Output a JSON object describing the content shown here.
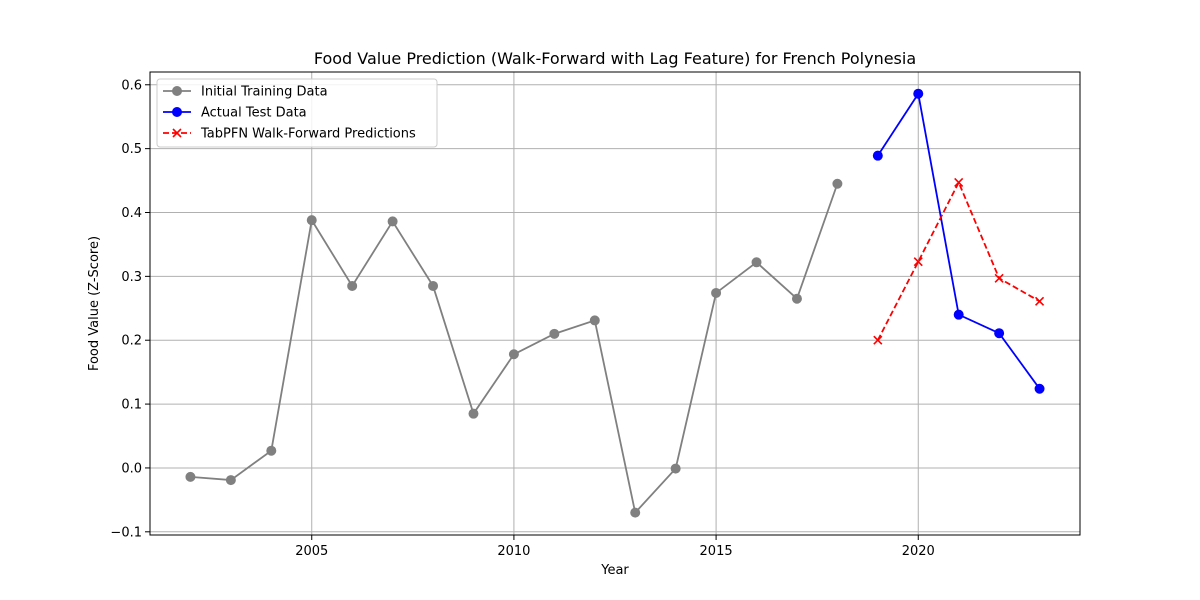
{
  "chart_data": {
    "type": "line",
    "title": "Food Value Prediction (Walk-Forward with Lag Feature) for French Polynesia",
    "xlabel": "Year",
    "ylabel": "Food Value (Z-Score)",
    "xlim": [
      2001,
      2024
    ],
    "ylim": [
      -0.105,
      0.62
    ],
    "xticks": [
      2005,
      2010,
      2015,
      2020
    ],
    "xtick_labels": [
      "2005",
      "2010",
      "2015",
      "2020"
    ],
    "yticks": [
      -0.1,
      0.0,
      0.1,
      0.2,
      0.3,
      0.4,
      0.5,
      0.6
    ],
    "ytick_labels": [
      "−0.1",
      "0.0",
      "0.1",
      "0.2",
      "0.3",
      "0.4",
      "0.5",
      "0.6"
    ],
    "grid": true,
    "legend_position": "top-left",
    "series": [
      {
        "name": "Initial Training Data",
        "color": "#808080",
        "linestyle": "solid",
        "marker": "circle",
        "x": [
          2002,
          2003,
          2004,
          2005,
          2006,
          2007,
          2008,
          2009,
          2010,
          2011,
          2012,
          2013,
          2014,
          2015,
          2016,
          2017,
          2018
        ],
        "y": [
          -0.014,
          -0.019,
          0.027,
          0.388,
          0.285,
          0.386,
          0.285,
          0.085,
          0.178,
          0.21,
          0.231,
          -0.07,
          -0.001,
          0.274,
          0.322,
          0.265,
          0.445
        ]
      },
      {
        "name": "Actual Test Data",
        "color": "#0000ff",
        "linestyle": "solid",
        "marker": "circle",
        "x": [
          2019,
          2020,
          2021,
          2022,
          2023
        ],
        "y": [
          0.489,
          0.586,
          0.24,
          0.211,
          0.124
        ]
      },
      {
        "name": "TabPFN Walk-Forward Predictions",
        "color": "#ff0000",
        "linestyle": "dashed",
        "marker": "x",
        "x": [
          2019,
          2020,
          2021,
          2022,
          2023
        ],
        "y": [
          0.2,
          0.323,
          0.447,
          0.297,
          0.261
        ]
      }
    ]
  }
}
